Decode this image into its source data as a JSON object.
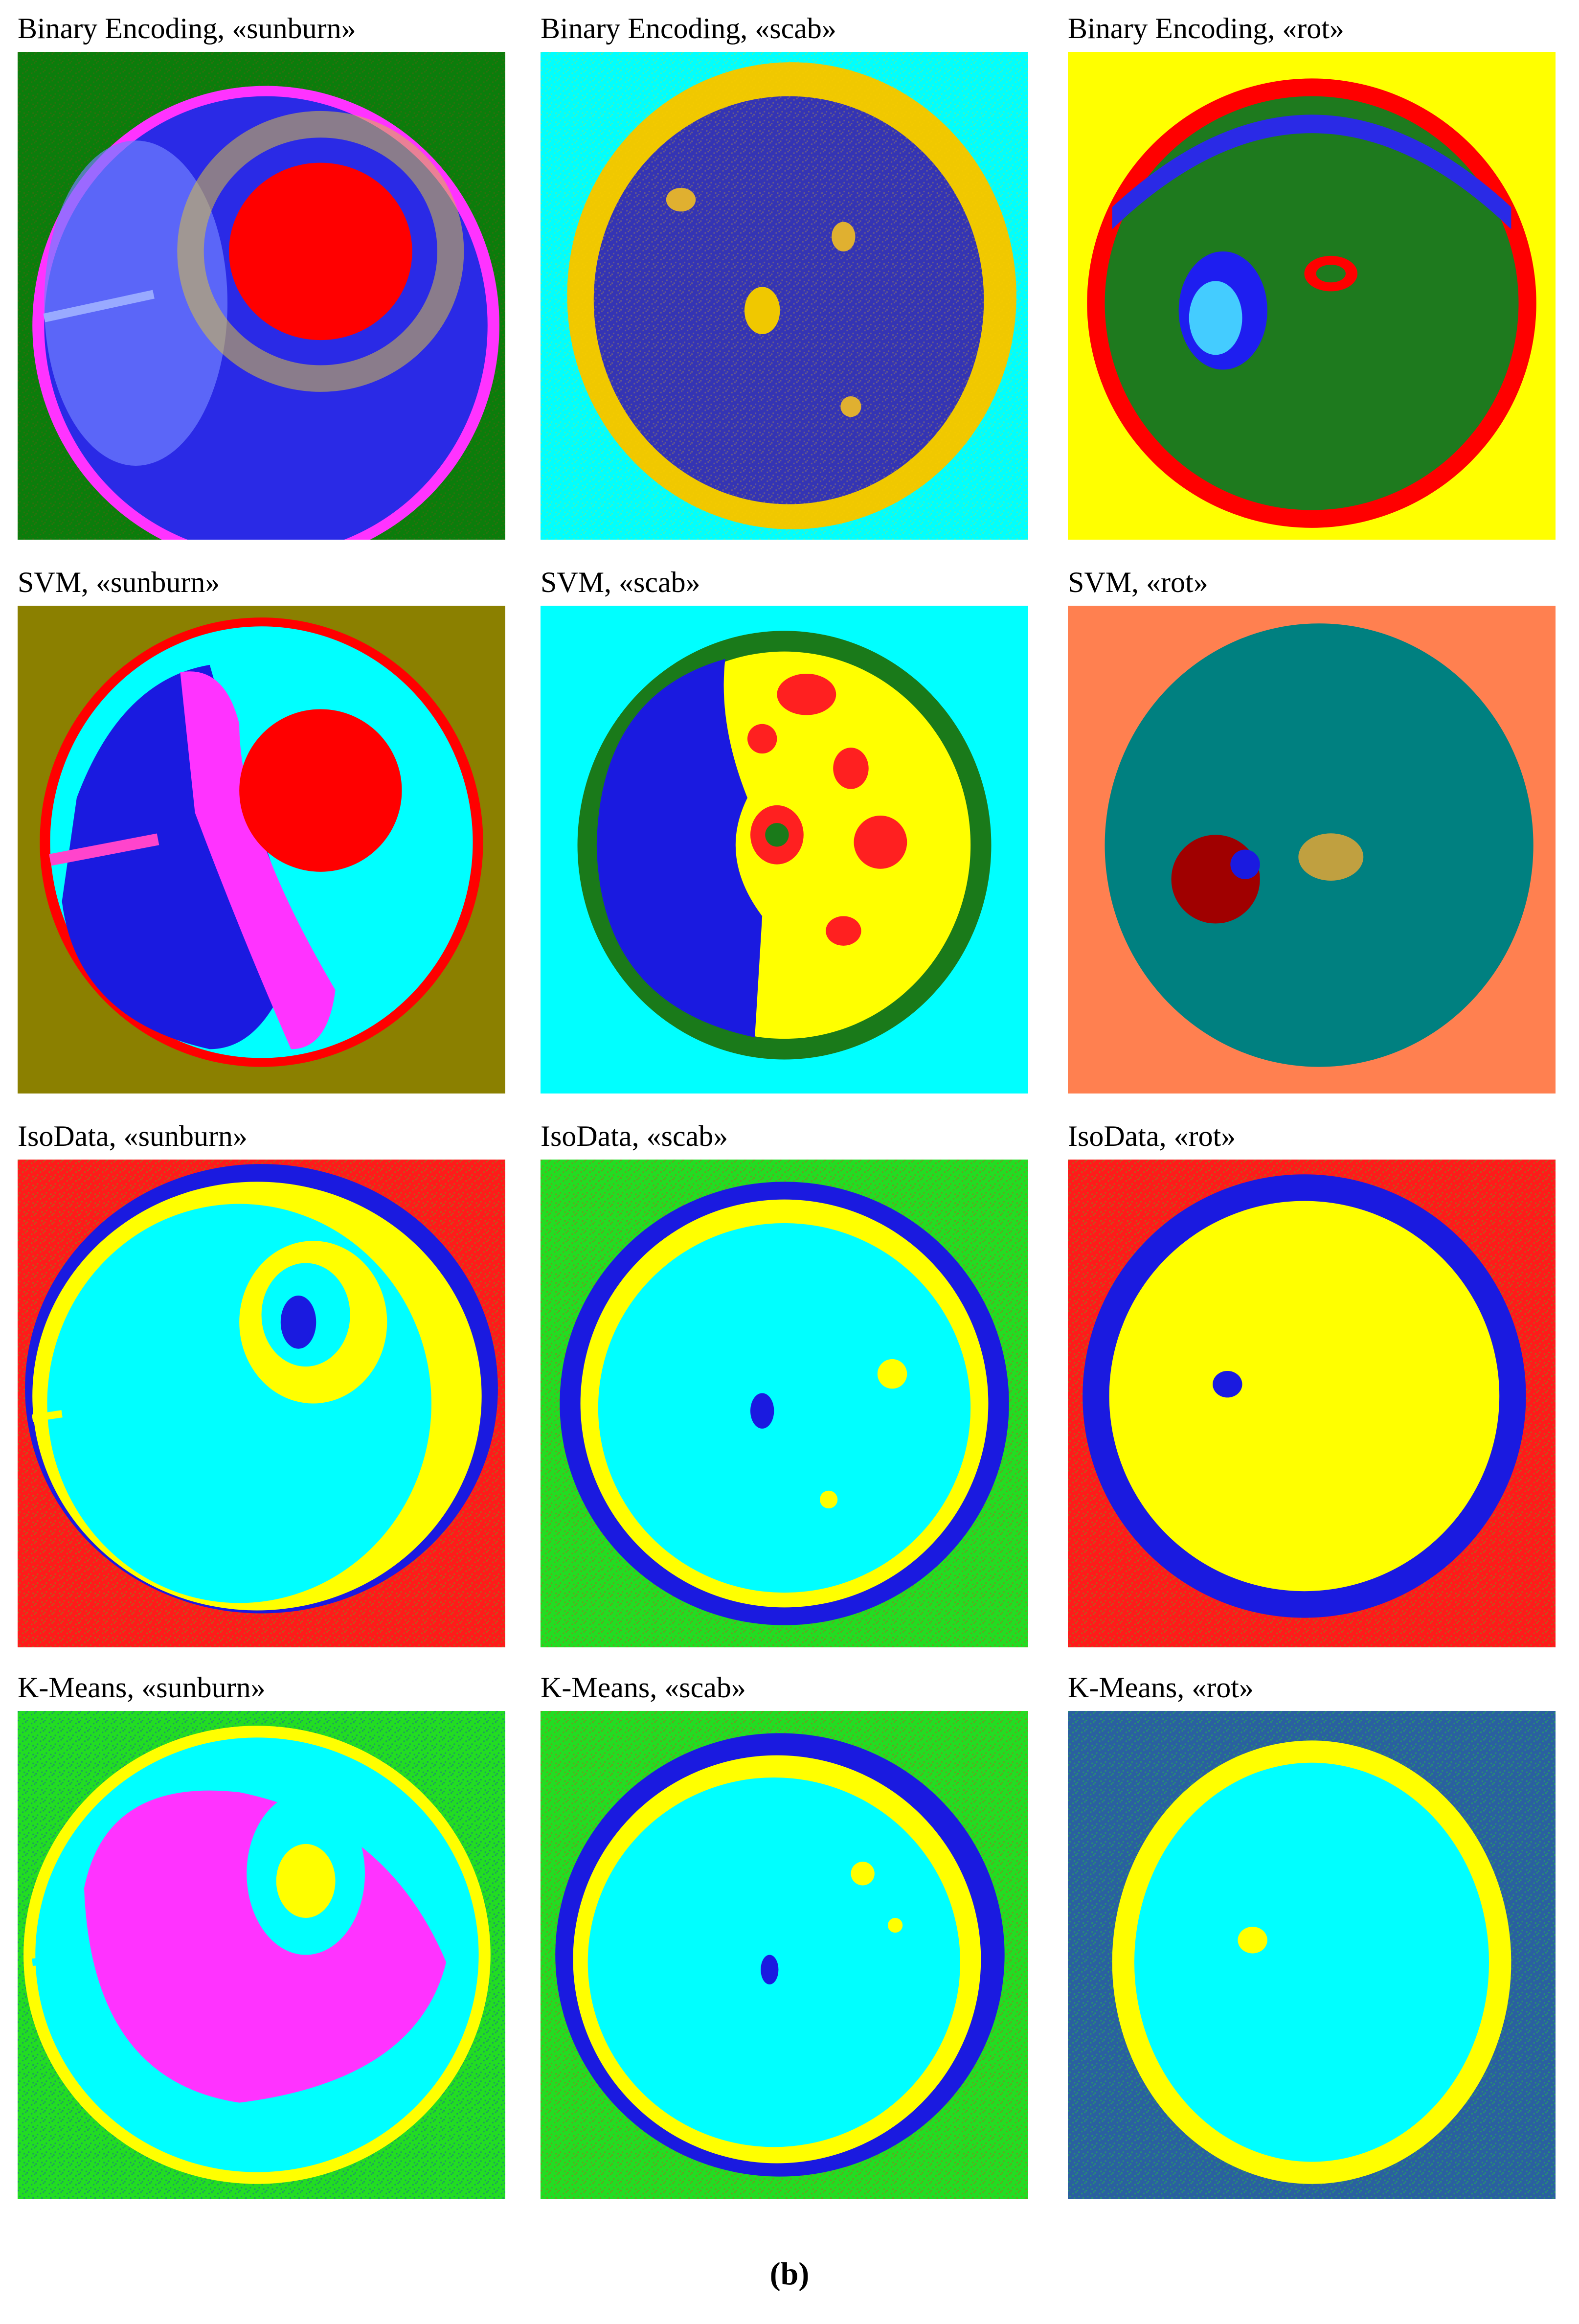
{
  "figure": {
    "panels": [
      {
        "title": "Binary Encoding, «sunburn»"
      },
      {
        "title": "Binary Encoding, «scab»"
      },
      {
        "title": "Binary Encoding, «rot»"
      },
      {
        "title": "SVM, «sunburn»"
      },
      {
        "title": "SVM, «scab»"
      },
      {
        "title": "SVM, «rot»"
      },
      {
        "title": "IsoData, «sunburn»"
      },
      {
        "title": "IsoData, «scab»"
      },
      {
        "title": "IsoData, «rot»"
      },
      {
        "title": "K-Means, «sunburn»"
      },
      {
        "title": "K-Means, «scab»"
      },
      {
        "title": "K-Means, «rot»"
      }
    ],
    "caption": "(b)"
  }
}
